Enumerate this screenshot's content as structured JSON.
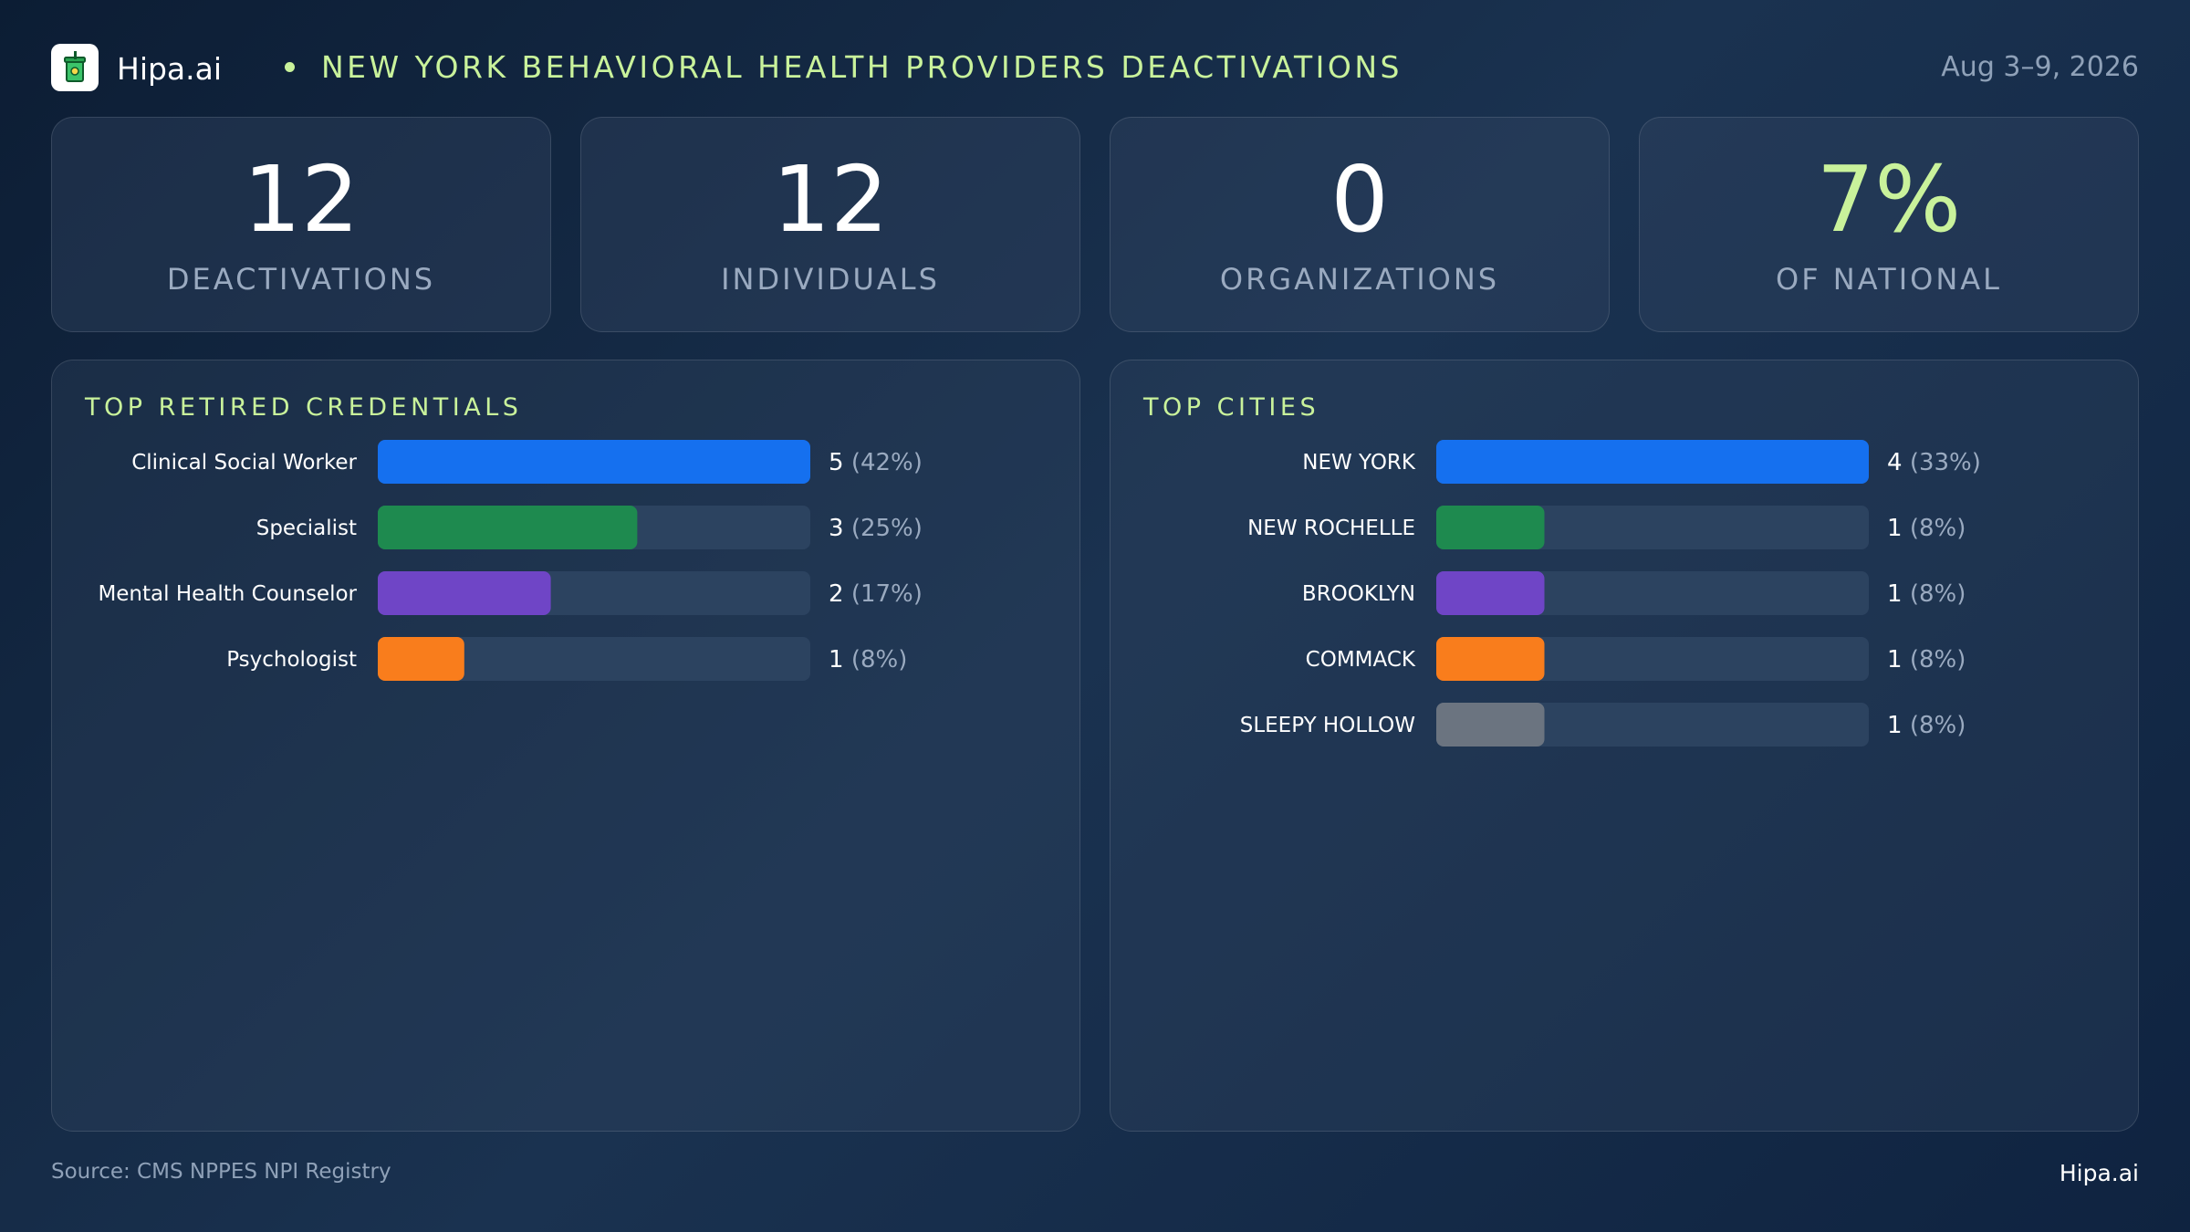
{
  "header": {
    "brand": "Hipa.ai",
    "title": "NEW YORK BEHAVIORAL HEALTH PROVIDERS DEACTIVATIONS",
    "date": "Aug 3–9, 2026",
    "logo_icon": "cup-icon"
  },
  "stats": [
    {
      "value": "12",
      "label": "DEACTIVATIONS"
    },
    {
      "value": "12",
      "label": "INDIVIDUALS"
    },
    {
      "value": "0",
      "label": "ORGANIZATIONS"
    },
    {
      "value": "7%",
      "label": "OF NATIONAL"
    }
  ],
  "colors": {
    "accent": "#c9f29b",
    "muted": "#9aaac0",
    "track": "#2c4360",
    "bars": [
      "#1570ef",
      "#1e8a4f",
      "#6f45c6",
      "#f97d1c",
      "#6b7480"
    ]
  },
  "chart_data": [
    {
      "type": "bar",
      "orientation": "horizontal",
      "title": "TOP RETIRED CREDENTIALS",
      "categories": [
        "Clinical Social Worker",
        "Specialist",
        "Mental Health Counselor",
        "Psychologist"
      ],
      "values": [
        5,
        3,
        2,
        1
      ],
      "percent_labels": [
        "(42%)",
        "(25%)",
        "(17%)",
        "(8%)"
      ],
      "xlim": [
        0,
        5
      ]
    },
    {
      "type": "bar",
      "orientation": "horizontal",
      "title": "TOP CITIES",
      "categories": [
        "NEW YORK",
        "NEW ROCHELLE",
        "BROOKLYN",
        "COMMACK",
        "SLEEPY HOLLOW"
      ],
      "values": [
        4,
        1,
        1,
        1,
        1
      ],
      "percent_labels": [
        "(33%)",
        "(8%)",
        "(8%)",
        "(8%)",
        "(8%)"
      ],
      "xlim": [
        0,
        4
      ]
    }
  ],
  "footer": {
    "source": "Source: CMS NPPES NPI Registry",
    "brand": "Hipa.ai"
  }
}
